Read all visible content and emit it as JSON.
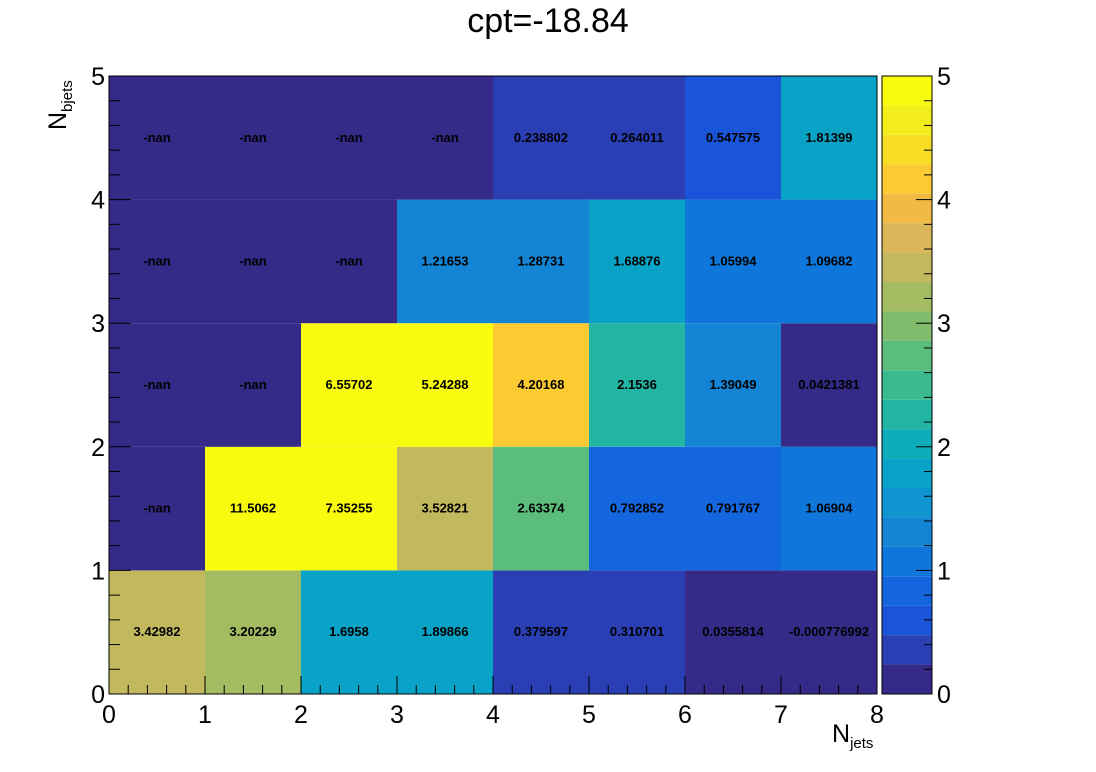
{
  "chart_data": {
    "type": "heatmap",
    "title": "cpt=-18.84",
    "xlabel": {
      "main": "N",
      "sub": "jets"
    },
    "ylabel": {
      "main": "N",
      "sub": "bjets"
    },
    "x_edges": [
      0,
      1,
      2,
      3,
      4,
      5,
      6,
      7,
      8
    ],
    "y_edges": [
      0,
      1,
      2,
      3,
      4,
      5
    ],
    "xlim": [
      0,
      8
    ],
    "ylim": [
      0,
      5
    ],
    "zlim": [
      0,
      5
    ],
    "x_ticks": [
      "0",
      "1",
      "2",
      "3",
      "4",
      "5",
      "6",
      "7",
      "8"
    ],
    "y_ticks": [
      "0",
      "1",
      "2",
      "3",
      "4",
      "5"
    ],
    "z_ticks": [
      "0",
      "1",
      "2",
      "3",
      "4",
      "5"
    ],
    "colormap": [
      "#352a87",
      "#2a3fb3",
      "#1a54d8",
      "#1366de",
      "#0f77dc",
      "#1485d4",
      "#0f95d0",
      "#08a3c7",
      "#0cadb9",
      "#22b5a4",
      "#3bba8e",
      "#5bbd7b",
      "#80bc6c",
      "#a3bb61",
      "#c2b95e",
      "#dcb75a",
      "#f0ba45",
      "#fbcb31",
      "#f7de24",
      "#f3ee1b",
      "#f9fb0e"
    ],
    "cells": [
      {
        "x": 0.5,
        "y": 0.5,
        "label": "3.42982",
        "value": 3.42982
      },
      {
        "x": 1.5,
        "y": 0.5,
        "label": "3.20229",
        "value": 3.20229
      },
      {
        "x": 2.5,
        "y": 0.5,
        "label": "1.6958",
        "value": 1.6958
      },
      {
        "x": 3.5,
        "y": 0.5,
        "label": "1.89866",
        "value": 1.89866
      },
      {
        "x": 4.5,
        "y": 0.5,
        "label": "0.379597",
        "value": 0.379597
      },
      {
        "x": 5.5,
        "y": 0.5,
        "label": "0.310701",
        "value": 0.310701
      },
      {
        "x": 6.5,
        "y": 0.5,
        "label": "0.0355814",
        "value": 0.0355814
      },
      {
        "x": 7.5,
        "y": 0.5,
        "label": "-0.000776992",
        "value": -0.000776992
      },
      {
        "x": 0.5,
        "y": 1.5,
        "label": "-nan",
        "value": null
      },
      {
        "x": 1.5,
        "y": 1.5,
        "label": "11.5062",
        "value": 11.5062
      },
      {
        "x": 2.5,
        "y": 1.5,
        "label": "7.35255",
        "value": 7.35255
      },
      {
        "x": 3.5,
        "y": 1.5,
        "label": "3.52821",
        "value": 3.52821
      },
      {
        "x": 4.5,
        "y": 1.5,
        "label": "2.63374",
        "value": 2.63374
      },
      {
        "x": 5.5,
        "y": 1.5,
        "label": "0.792852",
        "value": 0.792852
      },
      {
        "x": 6.5,
        "y": 1.5,
        "label": "0.791767",
        "value": 0.791767
      },
      {
        "x": 7.5,
        "y": 1.5,
        "label": "1.06904",
        "value": 1.06904
      },
      {
        "x": 0.5,
        "y": 2.5,
        "label": "-nan",
        "value": null
      },
      {
        "x": 1.5,
        "y": 2.5,
        "label": "-nan",
        "value": null
      },
      {
        "x": 2.5,
        "y": 2.5,
        "label": "6.55702",
        "value": 6.55702
      },
      {
        "x": 3.5,
        "y": 2.5,
        "label": "5.24288",
        "value": 5.24288
      },
      {
        "x": 4.5,
        "y": 2.5,
        "label": "4.20168",
        "value": 4.20168
      },
      {
        "x": 5.5,
        "y": 2.5,
        "label": "2.1536",
        "value": 2.1536
      },
      {
        "x": 6.5,
        "y": 2.5,
        "label": "1.39049",
        "value": 1.39049
      },
      {
        "x": 7.5,
        "y": 2.5,
        "label": "0.0421381",
        "value": 0.0421381
      },
      {
        "x": 0.5,
        "y": 3.5,
        "label": "-nan",
        "value": null
      },
      {
        "x": 1.5,
        "y": 3.5,
        "label": "-nan",
        "value": null
      },
      {
        "x": 2.5,
        "y": 3.5,
        "label": "-nan",
        "value": null
      },
      {
        "x": 3.5,
        "y": 3.5,
        "label": "1.21653",
        "value": 1.21653
      },
      {
        "x": 4.5,
        "y": 3.5,
        "label": "1.28731",
        "value": 1.28731
      },
      {
        "x": 5.5,
        "y": 3.5,
        "label": "1.68876",
        "value": 1.68876
      },
      {
        "x": 6.5,
        "y": 3.5,
        "label": "1.05994",
        "value": 1.05994
      },
      {
        "x": 7.5,
        "y": 3.5,
        "label": "1.09682",
        "value": 1.09682
      },
      {
        "x": 0.5,
        "y": 4.5,
        "label": "-nan",
        "value": null
      },
      {
        "x": 1.5,
        "y": 4.5,
        "label": "-nan",
        "value": null
      },
      {
        "x": 2.5,
        "y": 4.5,
        "label": "-nan",
        "value": null
      },
      {
        "x": 3.5,
        "y": 4.5,
        "label": "-nan",
        "value": null
      },
      {
        "x": 4.5,
        "y": 4.5,
        "label": "0.238802",
        "value": 0.238802
      },
      {
        "x": 5.5,
        "y": 4.5,
        "label": "0.264011",
        "value": 0.264011
      },
      {
        "x": 6.5,
        "y": 4.5,
        "label": "0.547575",
        "value": 0.547575
      },
      {
        "x": 7.5,
        "y": 4.5,
        "label": "1.81399",
        "value": 1.81399
      }
    ]
  }
}
